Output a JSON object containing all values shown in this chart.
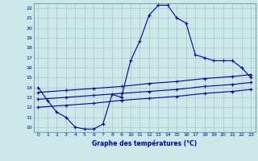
{
  "xlabel": "Graphe des températures (°C)",
  "bg_color": "#cce8e8",
  "grid_color": "#aacccc",
  "line_color": "#0000aa",
  "xlim": [
    -0.5,
    23.5
  ],
  "ylim": [
    9.5,
    22.5
  ],
  "xticks": [
    0,
    1,
    2,
    3,
    4,
    5,
    6,
    7,
    8,
    9,
    10,
    11,
    12,
    13,
    14,
    15,
    16,
    17,
    18,
    19,
    20,
    21,
    22,
    23
  ],
  "yticks": [
    10,
    11,
    12,
    13,
    14,
    15,
    16,
    17,
    18,
    19,
    20,
    21,
    22
  ],
  "line1_x": [
    0,
    1,
    2,
    3,
    4,
    5,
    6,
    7,
    8,
    9,
    10,
    11,
    12,
    13,
    14,
    15,
    16,
    17,
    18,
    19,
    20,
    21,
    22,
    23
  ],
  "line1_y": [
    14.0,
    12.7,
    11.5,
    11.0,
    10.0,
    9.8,
    9.8,
    10.3,
    13.3,
    13.0,
    16.7,
    18.7,
    21.3,
    22.3,
    22.3,
    21.0,
    20.5,
    17.3,
    17.0,
    16.7,
    16.7,
    16.7,
    16.0,
    15.0
  ],
  "line2_x": [
    0,
    3,
    6,
    9,
    12,
    15,
    18,
    21,
    23
  ],
  "line2_y": [
    13.5,
    13.7,
    13.9,
    14.1,
    14.4,
    14.6,
    14.9,
    15.1,
    15.3
  ],
  "line3_x": [
    0,
    3,
    6,
    9,
    12,
    15,
    18,
    21,
    23
  ],
  "line3_y": [
    12.8,
    13.0,
    13.2,
    13.4,
    13.6,
    13.8,
    14.1,
    14.3,
    14.5
  ],
  "line4_x": [
    0,
    3,
    6,
    9,
    12,
    15,
    18,
    21,
    23
  ],
  "line4_y": [
    12.0,
    12.2,
    12.4,
    12.7,
    12.9,
    13.1,
    13.4,
    13.6,
    13.8
  ]
}
